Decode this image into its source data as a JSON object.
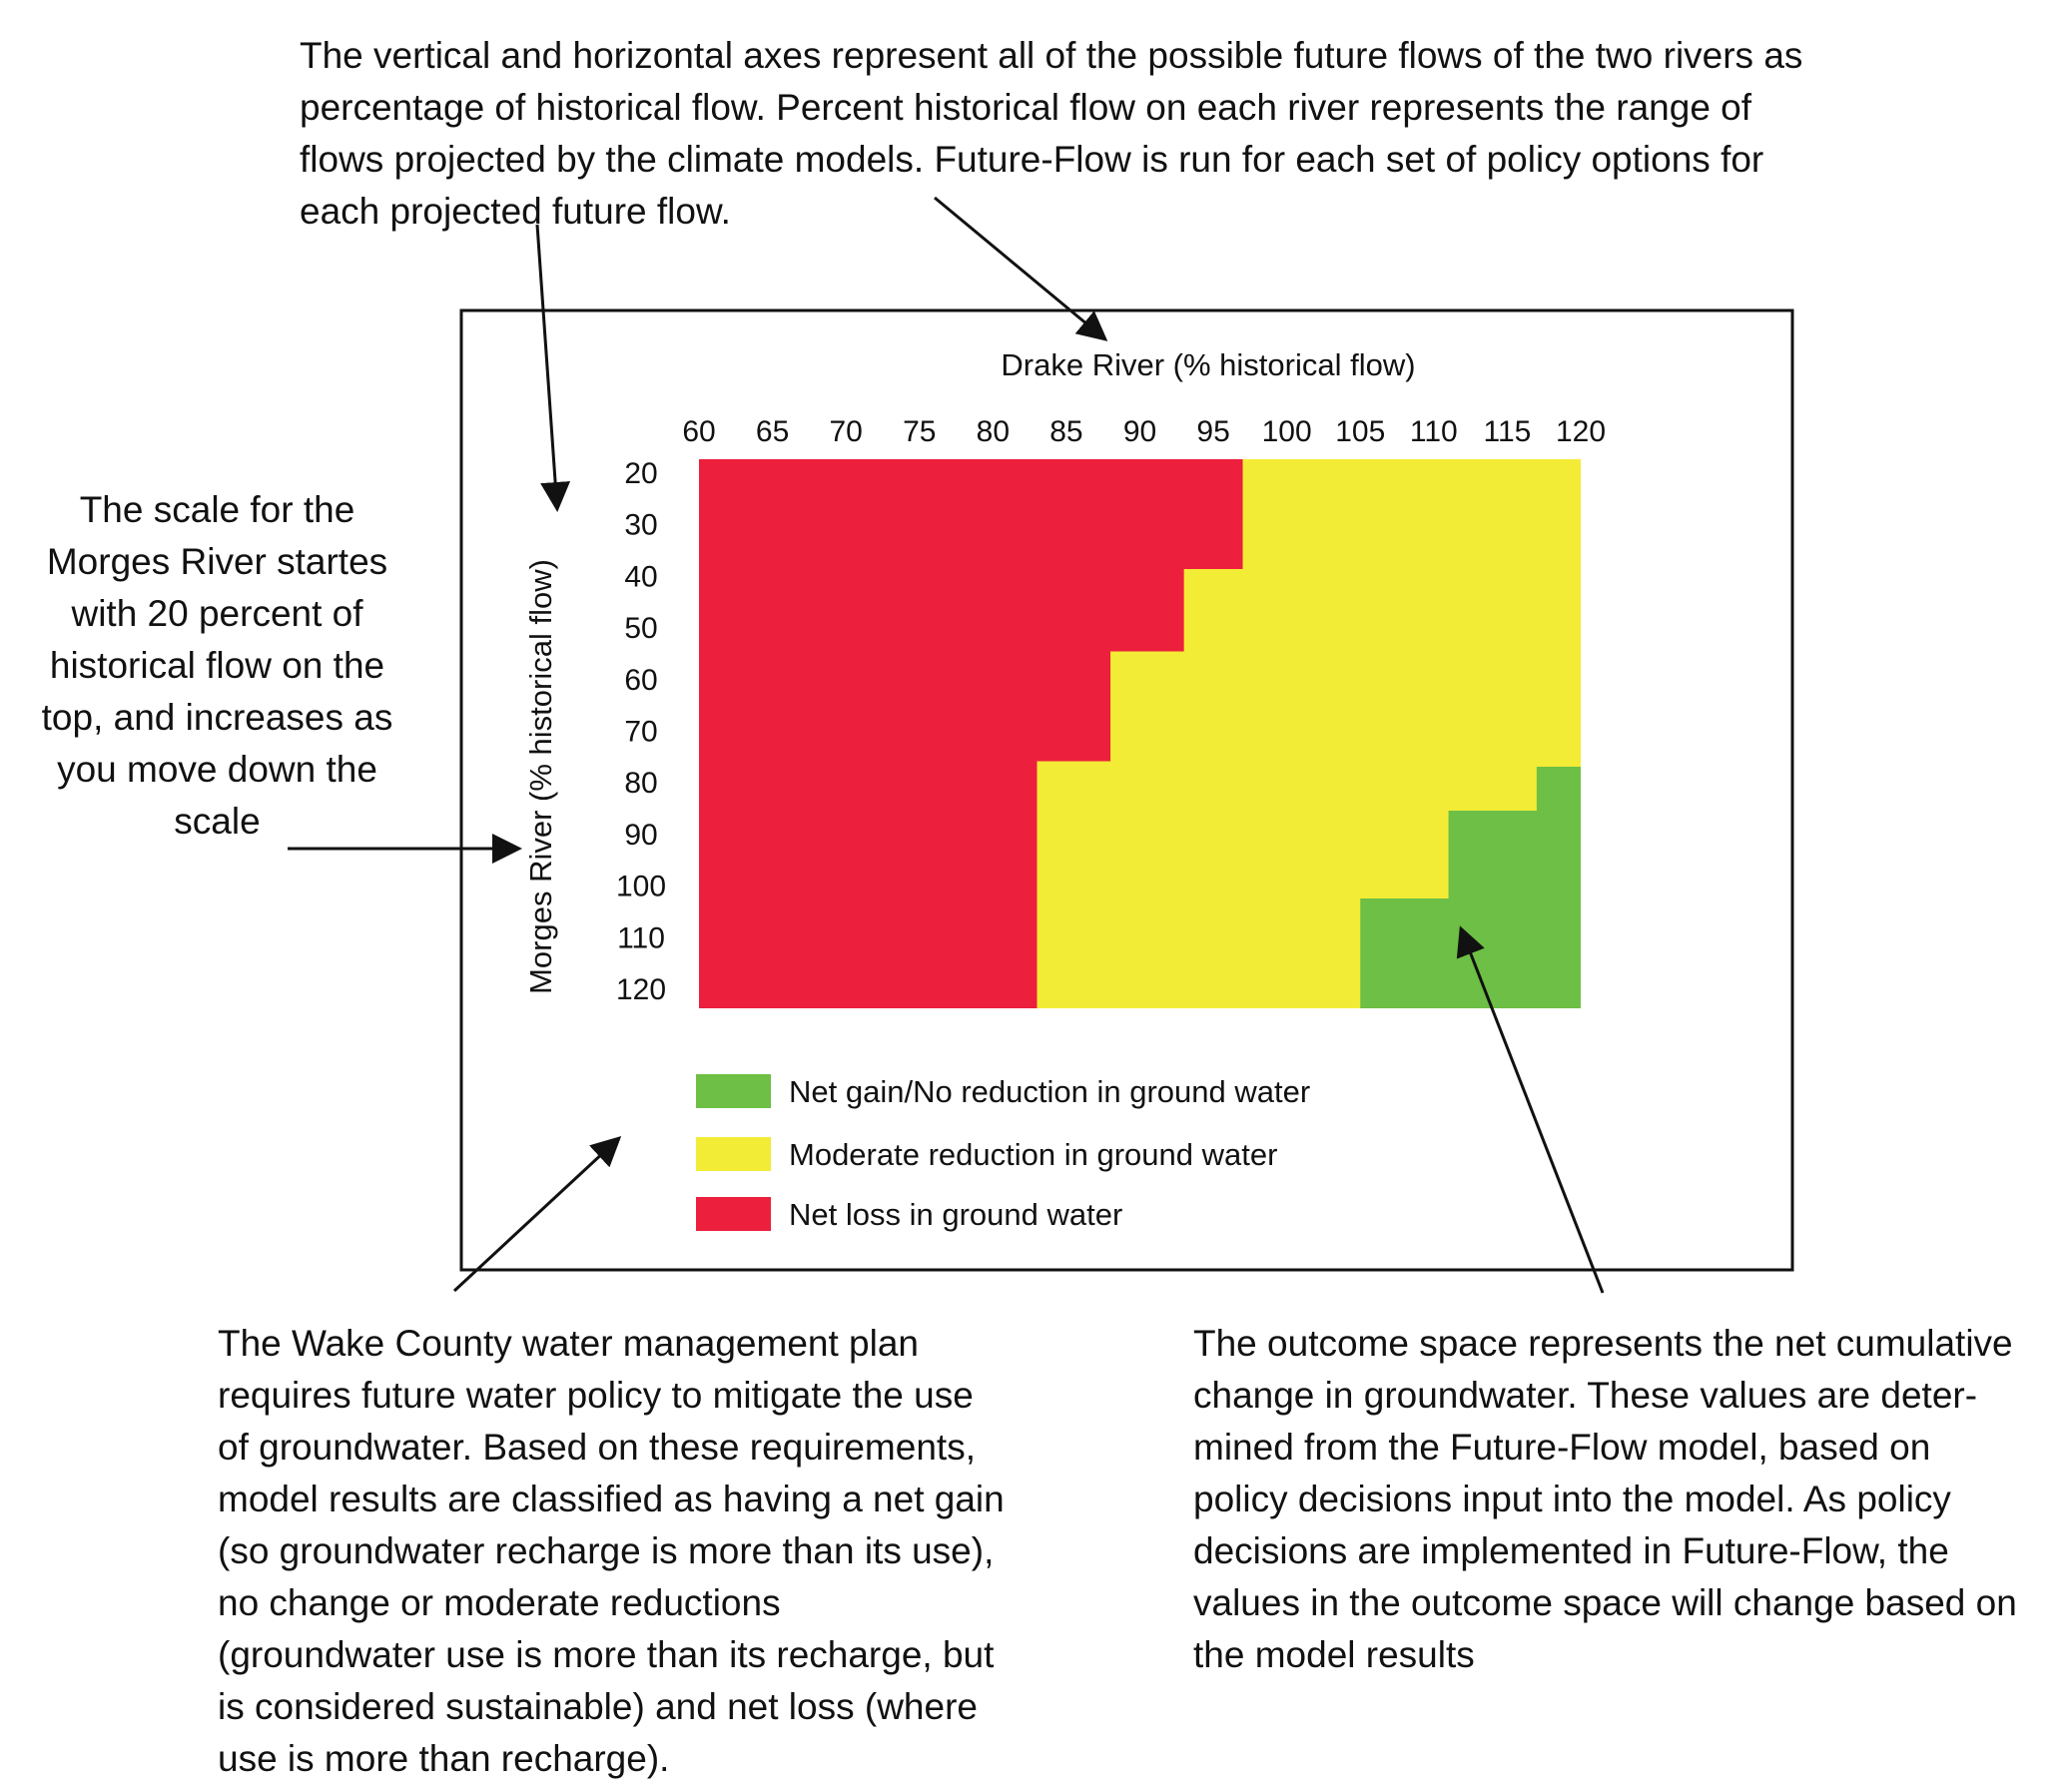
{
  "annotations": {
    "top": "The vertical and horizontal axes represent all of the possible future flows of the two rivers as\npercentage of historical flow. Percent historical flow on each river represents the range of\nflows projected by the climate models.  Future-Flow is run for each set of policy options for\neach projected future flow.",
    "left": "The scale for the\nMorges River startes\nwith 20 percent of\nhistorical flow on the\ntop, and increases as\nyou move down the\nscale",
    "bottom_left": "The Wake County water management plan\nrequires future water policy to mitigate the use\nof groundwater. Based on these requirements,\nmodel results are classified as having a net gain\n(so groundwater recharge is more than its use),\nno change or moderate reductions\n(groundwater use is more than its recharge, but\nis considered sustainable) and net loss (where\nuse is more than recharge).",
    "bottom_right": "The outcome space represents the net cumulative\nchange in groundwater. These values are deter-\nmined from the Future-Flow model, based on\npolicy decisions input into the model. As policy\ndecisions are implemented in Future-Flow, the\nvalues in the outcome space will change based on\nthe model results"
  },
  "chart_data": {
    "type": "heatmap",
    "xlabel": "Drake River (% historical flow)",
    "ylabel": "Morges River (% historical flow)",
    "x": [
      60,
      65,
      70,
      75,
      80,
      85,
      90,
      95,
      100,
      105,
      110,
      115,
      120
    ],
    "y": [
      20,
      30,
      40,
      50,
      60,
      70,
      80,
      90,
      100,
      110,
      120
    ],
    "y_direction": "increases downward",
    "categories": [
      {
        "key": "gain",
        "label": "Net gain/No reduction in ground water",
        "color": "#6dbf45"
      },
      {
        "key": "moderate",
        "label": "Moderate reduction in ground water",
        "color": "#f3ec36"
      },
      {
        "key": "loss",
        "label": "Net loss in ground water",
        "color": "#ec1f3d"
      }
    ],
    "regions": {
      "loss_upper_drake_by_morges": [
        {
          "morges_range": [
            20,
            40
          ],
          "drake_max": 97
        },
        {
          "morges_range": [
            40,
            55
          ],
          "drake_max": 93
        },
        {
          "morges_range": [
            55,
            75
          ],
          "drake_max": 88
        },
        {
          "morges_range": [
            75,
            120
          ],
          "drake_max": 83
        }
      ],
      "gain_lower_drake_by_morges": [
        {
          "morges_range": [
            76,
            84
          ],
          "drake_min": 117
        },
        {
          "morges_range": [
            84,
            100
          ],
          "drake_min": 111
        },
        {
          "morges_range": [
            100,
            120
          ],
          "drake_min": 105
        }
      ]
    },
    "legend_position": "bottom-left"
  }
}
